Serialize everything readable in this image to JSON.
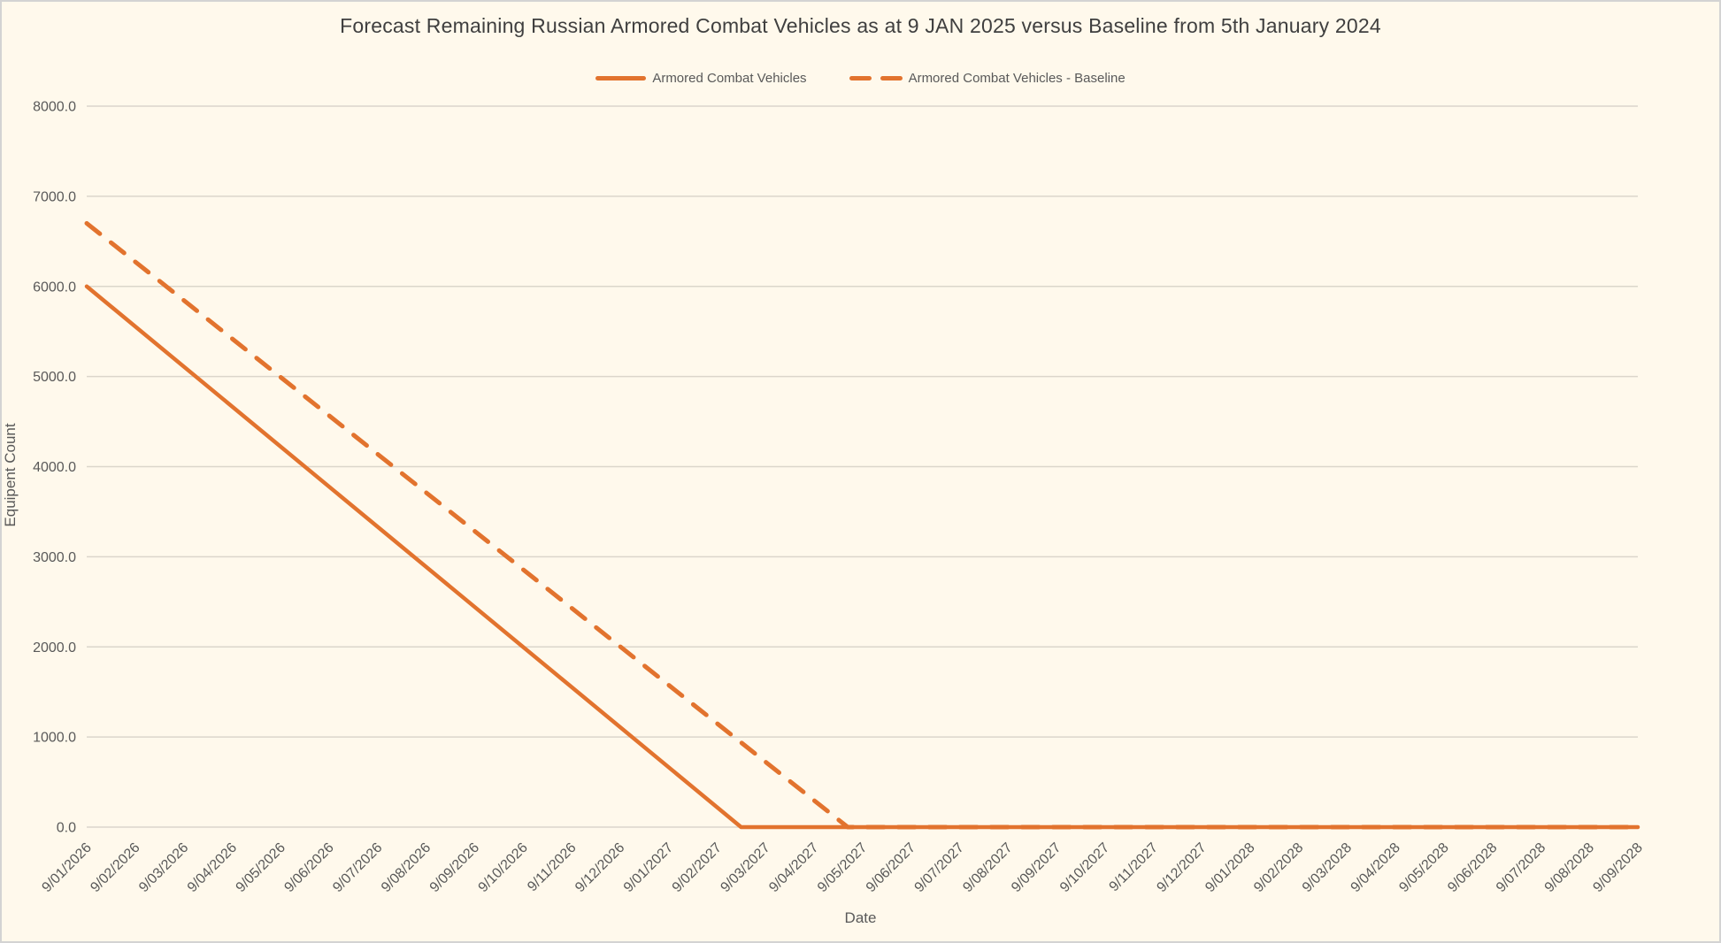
{
  "frame": {
    "background_color": "#FFF9EC",
    "border_color": "#D3D3D3"
  },
  "text_colors": {
    "title": "#3F3F3F",
    "axis_text": "#595959"
  },
  "chart_data": {
    "type": "line",
    "title": "Forecast Remaining Russian Armored Combat Vehicles as at 9 JAN 2025 versus Baseline from 5th January 2024",
    "xlabel": "Date",
    "ylabel": "Equipent Count",
    "ylim": [
      0,
      8000
    ],
    "ytick_step": 1000,
    "ytick_decimals": 1,
    "grid": "horizontal-only",
    "gridline_color": "#DBD6CB",
    "legend_position": "top-center",
    "categories": [
      "9/01/2026",
      "9/02/2026",
      "9/03/2026",
      "9/04/2026",
      "9/05/2026",
      "9/06/2026",
      "9/07/2026",
      "9/08/2026",
      "9/09/2026",
      "9/10/2026",
      "9/11/2026",
      "9/12/2026",
      "9/01/2027",
      "9/02/2027",
      "9/03/2027",
      "9/04/2027",
      "9/05/2027",
      "9/06/2027",
      "9/07/2027",
      "9/08/2027",
      "9/09/2027",
      "9/10/2027",
      "9/11/2027",
      "9/12/2027",
      "9/01/2028",
      "9/02/2028",
      "9/03/2028",
      "9/04/2028",
      "9/05/2028",
      "9/06/2028",
      "9/07/2028",
      "9/08/2028",
      "9/09/2028"
    ],
    "series": [
      {
        "name": "Armored Combat Vehicles",
        "line_style": "solid",
        "color": "#E2732E",
        "start_value": 6000,
        "approx_monthly_decline": 444,
        "zero_at_category_index": 13.5,
        "points": [
          {
            "x": 0,
            "y": 6000
          },
          {
            "x": 13.5,
            "y": 0
          },
          {
            "x": 32,
            "y": 0
          }
        ],
        "monthly_values": [
          6000,
          5556,
          5111,
          4667,
          4222,
          3778,
          3333,
          2889,
          2444,
          2000,
          1556,
          1111,
          667,
          222,
          0,
          0,
          0,
          0,
          0,
          0,
          0,
          0,
          0,
          0,
          0,
          0,
          0,
          0,
          0,
          0,
          0,
          0,
          0
        ]
      },
      {
        "name": "Armored Combat Vehicles - Baseline",
        "line_style": "dashed",
        "color": "#E2732E",
        "start_value": 6700,
        "approx_monthly_decline": 427,
        "zero_at_category_index": 15.7,
        "points": [
          {
            "x": 0,
            "y": 6700
          },
          {
            "x": 15.7,
            "y": 0
          },
          {
            "x": 32,
            "y": 0
          }
        ],
        "monthly_values": [
          6700,
          6273,
          5847,
          5420,
          4993,
          4566,
          4140,
          3713,
          3286,
          2859,
          2433,
          2006,
          1579,
          1152,
          726,
          299,
          0,
          0,
          0,
          0,
          0,
          0,
          0,
          0,
          0,
          0,
          0,
          0,
          0,
          0,
          0,
          0,
          0
        ]
      }
    ]
  }
}
